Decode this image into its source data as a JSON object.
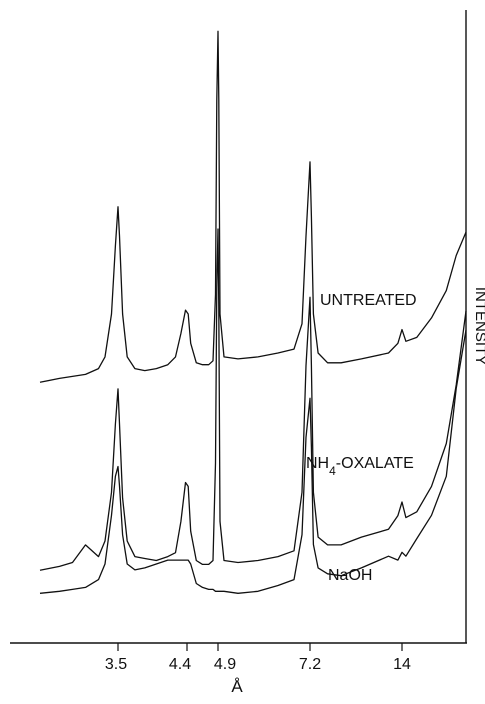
{
  "chart_data": {
    "type": "line",
    "title": "",
    "xlabel": "Å",
    "ylabel": "INTENSITY",
    "x_tick_labels": [
      "3.5",
      "4.4",
      "4.9",
      "7.2",
      "14"
    ],
    "x_tick_values": [
      3.5,
      4.4,
      4.9,
      7.2,
      14
    ],
    "x_axis_direction": "d-spacing increases to the right (2θ decreases)",
    "y_ticks_shown": false,
    "grid": false,
    "legend": "none; series labeled directly beside curves",
    "series": [
      {
        "name": "UNTREATED",
        "points": [
          [
            2.9,
            5
          ],
          [
            3.05,
            7
          ],
          [
            3.15,
            8
          ],
          [
            3.25,
            9
          ],
          [
            3.35,
            12
          ],
          [
            3.4,
            18
          ],
          [
            3.45,
            40
          ],
          [
            3.48,
            75
          ],
          [
            3.5,
            95
          ],
          [
            3.52,
            80
          ],
          [
            3.56,
            40
          ],
          [
            3.62,
            18
          ],
          [
            3.72,
            12
          ],
          [
            3.85,
            11
          ],
          [
            4.0,
            12
          ],
          [
            4.15,
            14
          ],
          [
            4.25,
            18
          ],
          [
            4.32,
            30
          ],
          [
            4.38,
            42
          ],
          [
            4.42,
            40
          ],
          [
            4.46,
            25
          ],
          [
            4.55,
            15
          ],
          [
            4.65,
            14
          ],
          [
            4.75,
            14
          ],
          [
            4.82,
            16
          ],
          [
            4.86,
            50
          ],
          [
            4.88,
            150
          ],
          [
            4.9,
            185
          ],
          [
            4.92,
            150
          ],
          [
            4.95,
            40
          ],
          [
            5.05,
            18
          ],
          [
            5.4,
            17
          ],
          [
            5.9,
            18
          ],
          [
            6.4,
            20
          ],
          [
            6.8,
            22
          ],
          [
            7.0,
            35
          ],
          [
            7.1,
            80
          ],
          [
            7.2,
            118
          ],
          [
            7.3,
            90
          ],
          [
            7.45,
            40
          ],
          [
            7.8,
            20
          ],
          [
            8.5,
            15
          ],
          [
            9.5,
            15
          ],
          [
            11.0,
            17
          ],
          [
            13.0,
            20
          ],
          [
            13.7,
            25
          ],
          [
            14.0,
            32
          ],
          [
            14.4,
            26
          ],
          [
            15.5,
            28
          ],
          [
            17.0,
            38
          ],
          [
            18.5,
            52
          ],
          [
            19.5,
            70
          ],
          [
            20.5,
            82
          ]
        ]
      },
      {
        "name": "NH4-OXALATE",
        "points": [
          [
            2.9,
            5
          ],
          [
            3.05,
            7
          ],
          [
            3.15,
            9
          ],
          [
            3.25,
            18
          ],
          [
            3.35,
            12
          ],
          [
            3.4,
            20
          ],
          [
            3.45,
            45
          ],
          [
            3.48,
            80
          ],
          [
            3.5,
            98
          ],
          [
            3.52,
            80
          ],
          [
            3.56,
            42
          ],
          [
            3.62,
            20
          ],
          [
            3.72,
            12
          ],
          [
            3.85,
            11
          ],
          [
            4.0,
            10
          ],
          [
            4.15,
            12
          ],
          [
            4.25,
            14
          ],
          [
            4.32,
            30
          ],
          [
            4.38,
            50
          ],
          [
            4.42,
            48
          ],
          [
            4.46,
            25
          ],
          [
            4.55,
            10
          ],
          [
            4.65,
            8
          ],
          [
            4.75,
            8
          ],
          [
            4.82,
            10
          ],
          [
            4.86,
            60
          ],
          [
            4.88,
            150
          ],
          [
            4.9,
            180
          ],
          [
            4.92,
            140
          ],
          [
            4.95,
            30
          ],
          [
            5.05,
            10
          ],
          [
            5.4,
            9
          ],
          [
            5.9,
            10
          ],
          [
            6.4,
            12
          ],
          [
            6.8,
            15
          ],
          [
            7.0,
            45
          ],
          [
            7.1,
            110
          ],
          [
            7.2,
            145
          ],
          [
            7.3,
            110
          ],
          [
            7.45,
            45
          ],
          [
            7.8,
            22
          ],
          [
            8.5,
            18
          ],
          [
            9.5,
            18
          ],
          [
            11.0,
            22
          ],
          [
            13.0,
            26
          ],
          [
            13.7,
            33
          ],
          [
            14.0,
            40
          ],
          [
            14.4,
            32
          ],
          [
            15.5,
            35
          ],
          [
            17.0,
            48
          ],
          [
            18.5,
            70
          ],
          [
            19.5,
            100
          ],
          [
            20.5,
            138
          ]
        ]
      },
      {
        "name": "NaOH",
        "points": [
          [
            2.9,
            5
          ],
          [
            3.05,
            6
          ],
          [
            3.15,
            7
          ],
          [
            3.25,
            8
          ],
          [
            3.35,
            12
          ],
          [
            3.4,
            20
          ],
          [
            3.45,
            45
          ],
          [
            3.48,
            65
          ],
          [
            3.5,
            70
          ],
          [
            3.52,
            60
          ],
          [
            3.56,
            35
          ],
          [
            3.62,
            20
          ],
          [
            3.72,
            17
          ],
          [
            3.85,
            18
          ],
          [
            4.0,
            20
          ],
          [
            4.15,
            22
          ],
          [
            4.25,
            22
          ],
          [
            4.32,
            22
          ],
          [
            4.38,
            22
          ],
          [
            4.42,
            22
          ],
          [
            4.46,
            20
          ],
          [
            4.55,
            10
          ],
          [
            4.65,
            8
          ],
          [
            4.75,
            7
          ],
          [
            4.82,
            7
          ],
          [
            4.86,
            6
          ],
          [
            4.88,
            6
          ],
          [
            4.9,
            6
          ],
          [
            4.92,
            6
          ],
          [
            4.95,
            6
          ],
          [
            5.05,
            6
          ],
          [
            5.4,
            5
          ],
          [
            5.9,
            6
          ],
          [
            6.4,
            9
          ],
          [
            6.8,
            12
          ],
          [
            7.0,
            35
          ],
          [
            7.1,
            85
          ],
          [
            7.2,
            105
          ],
          [
            7.3,
            80
          ],
          [
            7.45,
            30
          ],
          [
            7.8,
            18
          ],
          [
            8.5,
            15
          ],
          [
            9.5,
            14
          ],
          [
            11.0,
            18
          ],
          [
            13.0,
            24
          ],
          [
            13.7,
            22
          ],
          [
            14.0,
            26
          ],
          [
            14.4,
            24
          ],
          [
            15.5,
            33
          ],
          [
            17.0,
            45
          ],
          [
            18.5,
            65
          ],
          [
            19.5,
            110
          ],
          [
            20.5,
            140
          ]
        ]
      }
    ]
  }
}
